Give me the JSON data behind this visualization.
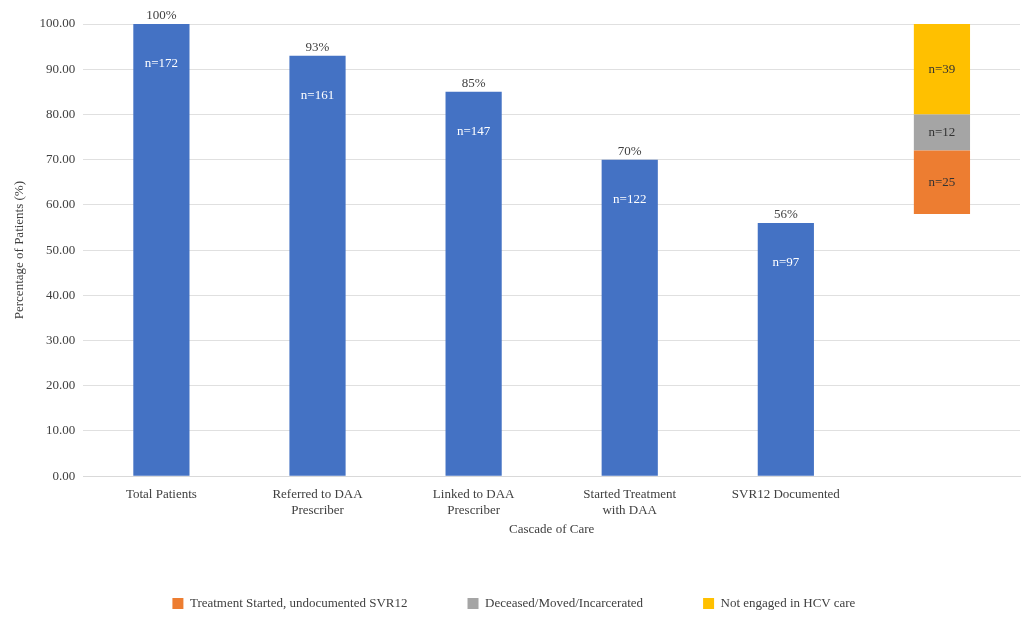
{
  "chart_data": {
    "type": "bar",
    "ylabel": "Percentage of Patients (%)",
    "xlabel": "Cascade of Care",
    "categories": [
      "Total Patients",
      "Referred to DAA Prescriber",
      "Linked to DAA Prescriber",
      "Started Treatment with DAA",
      "SVR12 Documented",
      null
    ],
    "series": [
      {
        "color": "#4472c4",
        "values": [
          100,
          93,
          85,
          70,
          56,
          null
        ],
        "value_labels": [
          "100%",
          "93%",
          "85%",
          "70%",
          "56%",
          null
        ]
      },
      {
        "name": "Treatment Started, undocumented SVR12",
        "color": "#ed7d31",
        "values": [
          null,
          null,
          null,
          null,
          null,
          14
        ],
        "base": [
          null,
          null,
          null,
          null,
          null,
          58
        ]
      },
      {
        "name": "Deceased/Moved/Incarcerated",
        "color": "#a5a5a5",
        "values": [
          null,
          null,
          null,
          null,
          null,
          8
        ],
        "base": [
          null,
          null,
          null,
          null,
          null,
          72
        ]
      },
      {
        "name": "Not engaged in HCV care",
        "color": "#ffc000",
        "values": [
          null,
          null,
          null,
          null,
          null,
          20
        ],
        "base": [
          null,
          null,
          null,
          null,
          null,
          80
        ]
      }
    ],
    "annotations": [
      "n=172",
      "n=161",
      "n=147",
      "n=122",
      "n=97",
      "n=25",
      "n=12",
      "n=39"
    ],
    "ylim": [
      0,
      100
    ],
    "yticks": [
      {
        "value": 0,
        "label": "0.00"
      },
      {
        "value": 10,
        "label": "10.00"
      },
      {
        "value": 20,
        "label": "20.00"
      },
      {
        "value": 30,
        "label": "30.00"
      },
      {
        "value": 40,
        "label": "40.00"
      },
      {
        "value": 50,
        "label": "50.00"
      },
      {
        "value": 60,
        "label": "60.00"
      },
      {
        "value": 70,
        "label": "70.00"
      },
      {
        "value": 80,
        "label": "80.00"
      },
      {
        "value": 90,
        "label": "90.00"
      },
      {
        "value": 100,
        "label": "100.00"
      }
    ],
    "grid": "y",
    "legend": "bottom"
  }
}
